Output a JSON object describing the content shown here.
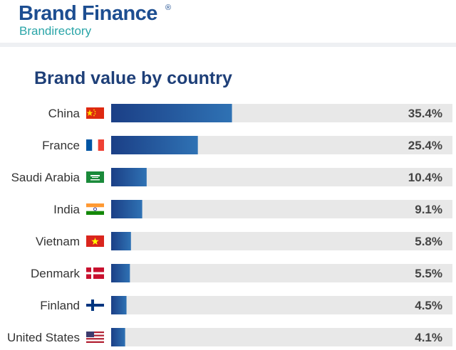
{
  "header": {
    "brand_name": "Brand Finance",
    "registered_mark": "®",
    "subtitle": "Brandirectory"
  },
  "colors": {
    "bar_start": "#1b3f86",
    "bar_end": "#2f72b4",
    "track": "#e8e8e8",
    "brand": "#1d4e91",
    "subtitle": "#2aa5a8"
  },
  "chart_data": {
    "type": "bar",
    "orientation": "horizontal",
    "title": "Brand value by country",
    "categories": [
      "China",
      "France",
      "Saudi Arabia",
      "India",
      "Vietnam",
      "Denmark",
      "Finland",
      "United States"
    ],
    "values": [
      35.4,
      25.4,
      10.4,
      9.1,
      5.8,
      5.5,
      4.5,
      4.1
    ],
    "value_labels": [
      "35.4%",
      "25.4%",
      "10.4%",
      "9.1%",
      "5.8%",
      "5.5%",
      "4.5%",
      "4.1%"
    ],
    "flags": [
      "china-flag-icon",
      "france-flag-icon",
      "saudi-arabia-flag-icon",
      "india-flag-icon",
      "vietnam-flag-icon",
      "denmark-flag-icon",
      "finland-flag-icon",
      "united-states-flag-icon"
    ],
    "xlim": [
      0,
      100
    ],
    "grid": false,
    "legend": "none"
  }
}
